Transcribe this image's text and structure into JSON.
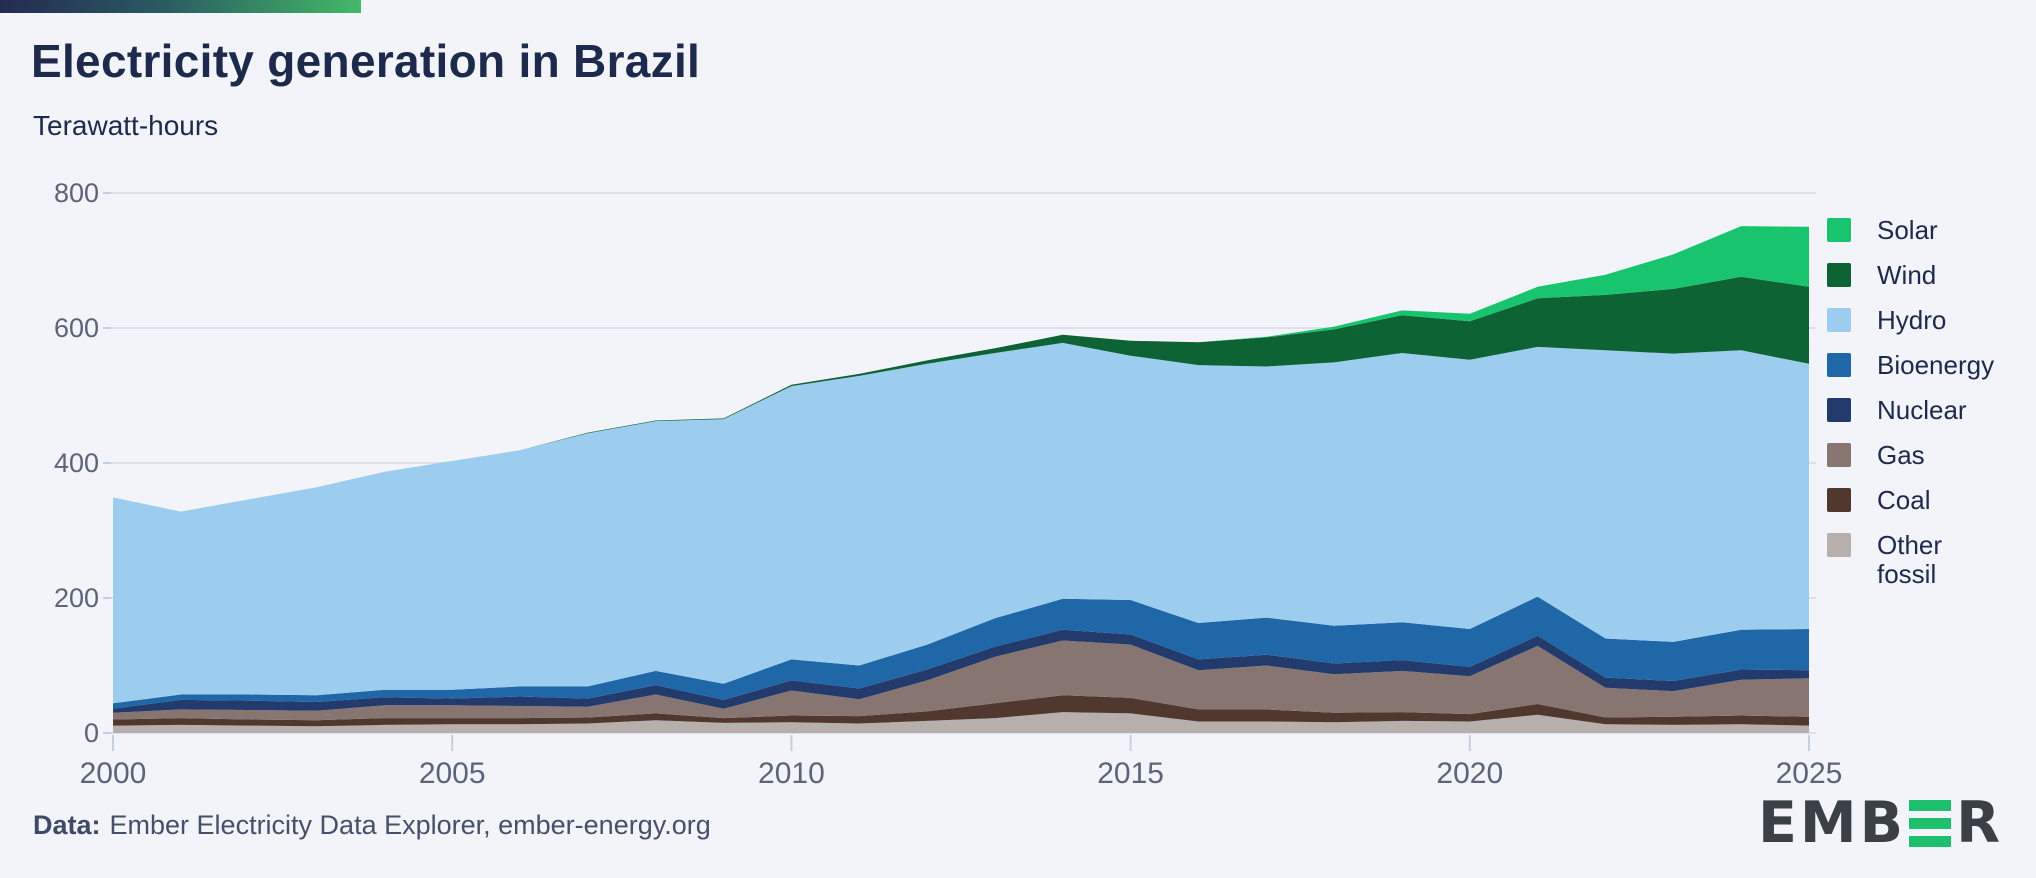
{
  "page": {
    "background": "#f3f4f9",
    "accent_gradient": [
      "#242b52",
      "#43b968"
    ]
  },
  "header": {
    "title": "Electricity generation in Brazil",
    "subtitle": "Terawatt-hours"
  },
  "chart_data": {
    "type": "area",
    "stacked": true,
    "title": "Electricity generation in Brazil",
    "xlabel": "",
    "ylabel": "Terawatt-hours",
    "unit": "TWh",
    "x": [
      2000,
      2001,
      2002,
      2003,
      2004,
      2005,
      2006,
      2007,
      2008,
      2009,
      2010,
      2011,
      2012,
      2013,
      2014,
      2015,
      2016,
      2017,
      2018,
      2019,
      2020,
      2021,
      2022,
      2023,
      2024,
      2025
    ],
    "series": [
      {
        "name": "Other fossil",
        "key": "other-fossil",
        "color": "#b6afab",
        "values": [
          11,
          12,
          11,
          10,
          12,
          13,
          13,
          14,
          19,
          15,
          16,
          14,
          18,
          22,
          31,
          29,
          17,
          17,
          16,
          18,
          17,
          27,
          13,
          12,
          13,
          11
        ]
      },
      {
        "name": "Coal",
        "key": "coal",
        "color": "#50382f",
        "values": [
          9,
          10,
          9,
          9,
          10,
          9,
          9,
          9,
          10,
          7,
          10,
          11,
          14,
          22,
          25,
          23,
          18,
          18,
          14,
          13,
          11,
          16,
          10,
          12,
          13,
          13
        ]
      },
      {
        "name": "Gas",
        "key": "gas",
        "color": "#867571",
        "values": [
          10,
          13,
          14,
          14,
          19,
          19,
          18,
          16,
          28,
          14,
          37,
          25,
          46,
          69,
          81,
          79,
          58,
          65,
          57,
          61,
          56,
          86,
          44,
          38,
          53,
          57
        ]
      },
      {
        "name": "Nuclear",
        "key": "nuclear",
        "color": "#233a6c",
        "values": [
          6,
          14,
          14,
          13,
          12,
          10,
          14,
          12,
          14,
          13,
          15,
          16,
          16,
          15,
          16,
          15,
          16,
          16,
          16,
          16,
          14,
          15,
          15,
          15,
          15,
          12
        ]
      },
      {
        "name": "Bioenergy",
        "key": "bioenergy",
        "color": "#2067a7",
        "values": [
          8,
          8,
          9,
          10,
          11,
          13,
          15,
          18,
          21,
          24,
          31,
          34,
          37,
          42,
          46,
          51,
          54,
          55,
          56,
          56,
          56,
          58,
          58,
          58,
          59,
          61
        ]
      },
      {
        "name": "Hydro",
        "key": "hydro",
        "color": "#9ccdee",
        "values": [
          305,
          271,
          289,
          308,
          323,
          339,
          350,
          375,
          370,
          392,
          405,
          429,
          416,
          393,
          379,
          362,
          382,
          372,
          390,
          399,
          399,
          370,
          427,
          427,
          414,
          393
        ]
      },
      {
        "name": "Wind",
        "key": "wind",
        "color": "#0d6334",
        "values": [
          0,
          0,
          0,
          0,
          0,
          0,
          0,
          1,
          1,
          1,
          2,
          3,
          5,
          7,
          12,
          22,
          34,
          43,
          49,
          56,
          57,
          72,
          82,
          96,
          109,
          114
        ]
      },
      {
        "name": "Solar",
        "key": "solar",
        "color": "#18c56e",
        "values": [
          0,
          0,
          0,
          0,
          0,
          0,
          0,
          0,
          0,
          0,
          0,
          0,
          0,
          0,
          0,
          0,
          0,
          1,
          4,
          7,
          11,
          17,
          30,
          51,
          75,
          89
        ]
      }
    ],
    "ylim": [
      0,
      800
    ],
    "yticks": [
      0,
      200,
      400,
      600,
      800
    ],
    "xticks": [
      2000,
      2005,
      2010,
      2015,
      2020,
      2025
    ],
    "grid": "horizontal",
    "legend_position": "right",
    "axis_colors": {
      "grid": "#dcdfec",
      "tick": "#c7cedf",
      "label": "#5b6478"
    }
  },
  "legend": {
    "items": [
      {
        "key": "solar",
        "color": "#18c56e",
        "lines": [
          "Solar"
        ]
      },
      {
        "key": "wind",
        "color": "#0d6334",
        "lines": [
          "Wind"
        ]
      },
      {
        "key": "hydro",
        "color": "#9ccdee",
        "lines": [
          "Hydro"
        ]
      },
      {
        "key": "bioenergy",
        "color": "#2067a7",
        "lines": [
          "Bioenergy"
        ]
      },
      {
        "key": "nuclear",
        "color": "#233a6c",
        "lines": [
          "Nuclear"
        ]
      },
      {
        "key": "gas",
        "color": "#867571",
        "lines": [
          "Gas"
        ]
      },
      {
        "key": "coal",
        "color": "#50382f",
        "lines": [
          "Coal"
        ]
      },
      {
        "key": "other-fossil",
        "color": "#b6afab",
        "lines": [
          "Other",
          "fossil"
        ]
      }
    ]
  },
  "footer": {
    "source_label": "Data:",
    "source_text": "Ember Electricity Data Explorer, ember-energy.org",
    "logo_text_pre": "EMB",
    "logo_text_post": "R"
  }
}
